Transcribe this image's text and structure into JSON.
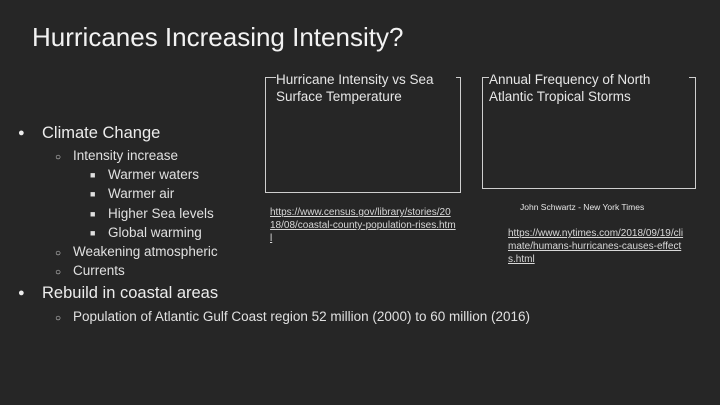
{
  "slide": {
    "title": "Hurricanes Increasing Intensity?",
    "bullets": {
      "climate_change": "Climate Change",
      "intensity_increase": "Intensity increase",
      "warmer_waters": "Warmer waters",
      "warmer_air": "Warmer air",
      "higher_sea_levels": "Higher Sea levels",
      "global_warming": "Global warming",
      "weakening_atmospheric": "Weakening atmospheric",
      "currents": "Currents",
      "rebuild": "Rebuild in coastal areas",
      "population": "Population of Atlantic Gulf Coast region 52 million (2000) to 60 million (2016)"
    },
    "bullet_glyphs": {
      "level1": "●",
      "level2": "○",
      "level3": "■"
    },
    "image_left": {
      "caption": "Hurricane Intensity vs Sea Surface Temperature",
      "link": "https://www.census.gov/library/stories/2018/08/coastal-county-population-rises.html"
    },
    "image_right": {
      "caption": "Annual Frequency of North Atlantic Tropical Storms",
      "credit": "John Schwartz - New York Times",
      "link": "https://www.nytimes.com/2018/09/19/climate/humans-hurricanes-causes-effects.html"
    }
  }
}
